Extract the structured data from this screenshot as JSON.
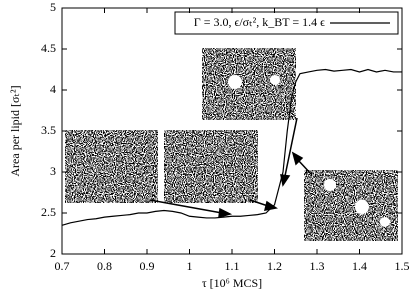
{
  "chart_data": {
    "type": "line",
    "legend_label": "Γ = 3.0, ϵ/σₜ², k_BT = 1.4 ϵ",
    "x_label": "τ [10⁶ MCS]",
    "y_label": "Area per lipid [σₜ²]",
    "x": [
      0.7,
      0.72,
      0.74,
      0.76,
      0.78,
      0.8,
      0.82,
      0.84,
      0.86,
      0.88,
      0.9,
      0.92,
      0.94,
      0.96,
      0.98,
      1.0,
      1.02,
      1.04,
      1.06,
      1.08,
      1.1,
      1.12,
      1.14,
      1.16,
      1.18,
      1.2,
      1.22,
      1.23,
      1.24,
      1.25,
      1.26,
      1.28,
      1.3,
      1.32,
      1.34,
      1.36,
      1.38,
      1.4,
      1.42,
      1.44,
      1.46,
      1.48,
      1.5
    ],
    "series": [
      {
        "name": "Γ = 3.0, ϵ/σₜ², k_BT = 1.4 ϵ",
        "color": "#000000",
        "values": [
          2.35,
          2.38,
          2.4,
          2.42,
          2.43,
          2.45,
          2.46,
          2.47,
          2.48,
          2.5,
          2.5,
          2.52,
          2.53,
          2.52,
          2.5,
          2.46,
          2.45,
          2.44,
          2.44,
          2.45,
          2.46,
          2.46,
          2.47,
          2.48,
          2.5,
          2.6,
          3.0,
          3.5,
          3.9,
          4.1,
          4.2,
          4.22,
          4.24,
          4.25,
          4.23,
          4.24,
          4.25,
          4.22,
          4.25,
          4.22,
          4.24,
          4.22,
          4.22
        ]
      }
    ],
    "xlim": [
      0.7,
      1.5
    ],
    "ylim": [
      2,
      5
    ],
    "xticks": [
      0.7,
      0.8,
      0.9,
      1,
      1.1,
      1.2,
      1.3,
      1.4,
      1.5
    ],
    "yticks": [
      2,
      2.5,
      3,
      3.5,
      4,
      4.5,
      5
    ]
  }
}
